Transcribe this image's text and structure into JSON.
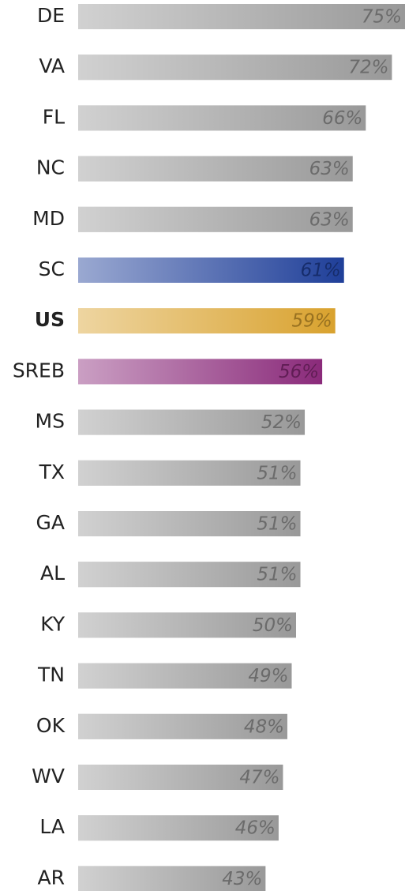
{
  "chart_data": {
    "type": "bar",
    "orientation": "horizontal",
    "categories": [
      "DE",
      "VA",
      "FL",
      "NC",
      "MD",
      "SC",
      "US",
      "SREB",
      "MS",
      "TX",
      "GA",
      "AL",
      "KY",
      "TN",
      "OK",
      "WV",
      "LA",
      "AR"
    ],
    "values": [
      75,
      72,
      66,
      63,
      63,
      61,
      59,
      56,
      52,
      51,
      51,
      51,
      50,
      49,
      48,
      47,
      46,
      43
    ],
    "value_labels": [
      "75%",
      "72%",
      "66%",
      "63%",
      "63%",
      "61%",
      "59%",
      "56%",
      "52%",
      "51%",
      "51%",
      "51%",
      "50%",
      "49%",
      "48%",
      "47%",
      "46%",
      "43%"
    ],
    "colors": [
      "#999999",
      "#999999",
      "#999999",
      "#999999",
      "#999999",
      "#1f3f99",
      "#d9a22e",
      "#8a2a7a",
      "#999999",
      "#999999",
      "#999999",
      "#999999",
      "#999999",
      "#999999",
      "#999999",
      "#999999",
      "#999999",
      "#999999"
    ],
    "bold_category": "US"
  }
}
